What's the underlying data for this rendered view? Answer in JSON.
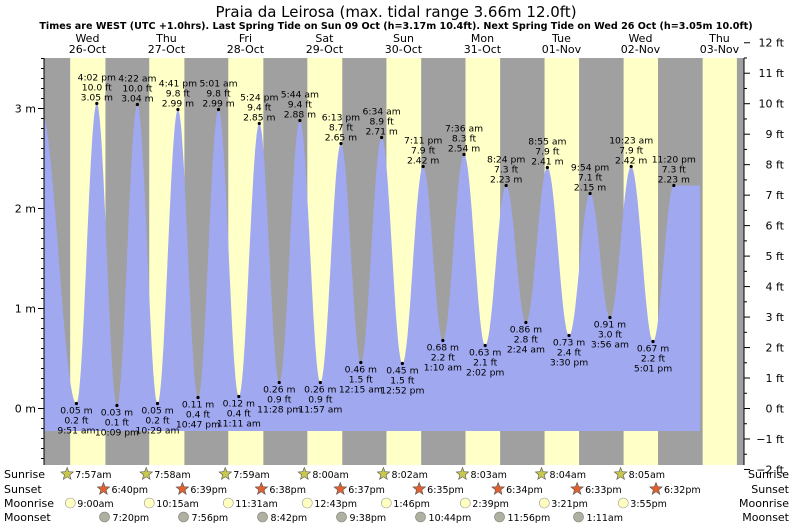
{
  "chart_data": {
    "type": "area",
    "title": "Praia da Leirosa (max. tidal range 3.66m 12.0ft)",
    "subtitle": "Times are WEST (UTC +1.0hrs). Last Spring Tide on Sun 09 Oct (h=3.17m 10.4ft). Next Spring Tide on Wed 26 Oct (h=3.05m 10.0ft)",
    "days": [
      {
        "name": "Wed",
        "date": "26-Oct"
      },
      {
        "name": "Thu",
        "date": "27-Oct"
      },
      {
        "name": "Fri",
        "date": "28-Oct"
      },
      {
        "name": "Sat",
        "date": "29-Oct"
      },
      {
        "name": "Sun",
        "date": "30-Oct"
      },
      {
        "name": "Mon",
        "date": "31-Oct"
      },
      {
        "name": "Tue",
        "date": "01-Nov"
      },
      {
        "name": "Wed",
        "date": "02-Nov"
      },
      {
        "name": "Thu",
        "date": "03-Nov"
      }
    ],
    "y_left": {
      "unit": "m",
      "ticks": [
        "0 m",
        "1 m",
        "2 m",
        "3 m"
      ],
      "values": [
        0,
        1,
        2,
        3
      ]
    },
    "y_right": {
      "unit": "ft",
      "ticks": [
        "−2 ft",
        "−1 ft",
        "0 ft",
        "1 ft",
        "2 ft",
        "3 ft",
        "4 ft",
        "5 ft",
        "6 ft",
        "7 ft",
        "8 ft",
        "9 ft",
        "10 ft",
        "11 ft",
        "12 ft"
      ],
      "values": [
        -2,
        -1,
        0,
        1,
        2,
        3,
        4,
        5,
        6,
        7,
        8,
        9,
        10,
        11,
        12
      ]
    },
    "ylim_m": [
      -0.55,
      3.66
    ],
    "daylight": [
      {
        "sunrise": 7.95,
        "sunset": 18.667
      },
      {
        "sunrise": 7.967,
        "sunset": 18.65
      },
      {
        "sunrise": 7.983,
        "sunset": 18.633
      },
      {
        "sunrise": 8.0,
        "sunset": 18.617
      },
      {
        "sunrise": 8.033,
        "sunset": 18.583
      },
      {
        "sunrise": 8.05,
        "sunset": 18.567
      },
      {
        "sunrise": 8.067,
        "sunset": 18.55
      },
      {
        "sunrise": 8.083,
        "sunset": 18.533
      },
      {
        "sunrise": 8.1,
        "sunset": 18.5
      }
    ],
    "tides": [
      {
        "t": -1.0,
        "h": 3.0,
        "label": false
      },
      {
        "t": 9.85,
        "h": 0.05,
        "m": "0.05 m",
        "ft": "0.2 ft",
        "time": "9:51 am",
        "type": "low"
      },
      {
        "t": 16.033,
        "h": 3.05,
        "m": "3.05 m",
        "ft": "10.0 ft",
        "time": "4:02 pm",
        "type": "high"
      },
      {
        "t": 22.15,
        "h": 0.03,
        "m": "0.03 m",
        "ft": "0.1 ft",
        "time": "10:09 pm",
        "type": "low"
      },
      {
        "t": 28.367,
        "h": 3.04,
        "m": "3.04 m",
        "ft": "10.0 ft",
        "time": "4:22 am",
        "type": "high"
      },
      {
        "t": 34.483,
        "h": 0.05,
        "m": "0.05 m",
        "ft": "0.2 ft",
        "time": "10:29 am",
        "type": "low"
      },
      {
        "t": 40.683,
        "h": 2.99,
        "m": "2.99 m",
        "ft": "9.8 ft",
        "time": "4:41 pm",
        "type": "high"
      },
      {
        "t": 46.783,
        "h": 0.11,
        "m": "0.11 m",
        "ft": "0.4 ft",
        "time": "10:47 pm",
        "type": "low"
      },
      {
        "t": 53.017,
        "h": 2.99,
        "m": "2.99 m",
        "ft": "9.8 ft",
        "time": "5:01 am",
        "type": "high"
      },
      {
        "t": 59.183,
        "h": 0.12,
        "m": "0.12 m",
        "ft": "0.4 ft",
        "time": "11:11 am",
        "type": "low"
      },
      {
        "t": 65.4,
        "h": 2.85,
        "m": "2.85 m",
        "ft": "9.4 ft",
        "time": "5:24 pm",
        "type": "high"
      },
      {
        "t": 71.467,
        "h": 0.26,
        "m": "0.26 m",
        "ft": "0.9 ft",
        "time": "11:28 pm",
        "type": "low"
      },
      {
        "t": 77.733,
        "h": 2.88,
        "m": "2.88 m",
        "ft": "9.4 ft",
        "time": "5:44 am",
        "type": "high"
      },
      {
        "t": 83.95,
        "h": 0.26,
        "m": "0.26 m",
        "ft": "0.9 ft",
        "time": "11:57 am",
        "type": "low"
      },
      {
        "t": 90.217,
        "h": 2.65,
        "m": "2.65 m",
        "ft": "8.7 ft",
        "time": "6:13 pm",
        "type": "high"
      },
      {
        "t": 96.25,
        "h": 0.46,
        "m": "0.46 m",
        "ft": "1.5 ft",
        "time": "12:15 am",
        "type": "low"
      },
      {
        "t": 102.567,
        "h": 2.71,
        "m": "2.71 m",
        "ft": "8.9 ft",
        "time": "6:34 am",
        "type": "high"
      },
      {
        "t": 108.867,
        "h": 0.45,
        "m": "0.45 m",
        "ft": "1.5 ft",
        "time": "12:52 pm",
        "type": "low"
      },
      {
        "t": 115.183,
        "h": 2.42,
        "m": "2.42 m",
        "ft": "7.9 ft",
        "time": "7:11 pm",
        "type": "high"
      },
      {
        "t": 121.167,
        "h": 0.68,
        "m": "0.68 m",
        "ft": "2.2 ft",
        "time": "1:10 am",
        "type": "low"
      },
      {
        "t": 127.6,
        "h": 2.54,
        "m": "2.54 m",
        "ft": "8.3 ft",
        "time": "7:36 am",
        "type": "high"
      },
      {
        "t": 134.033,
        "h": 0.63,
        "m": "0.63 m",
        "ft": "2.1 ft",
        "time": "2:02 pm",
        "type": "low"
      },
      {
        "t": 140.4,
        "h": 2.23,
        "m": "2.23 m",
        "ft": "7.3 ft",
        "time": "8:24 pm",
        "type": "high"
      },
      {
        "t": 146.4,
        "h": 0.86,
        "m": "0.86 m",
        "ft": "2.8 ft",
        "time": "2:24 am",
        "type": "low"
      },
      {
        "t": 152.917,
        "h": 2.41,
        "m": "2.41 m",
        "ft": "7.9 ft",
        "time": "8:55 am",
        "type": "high"
      },
      {
        "t": 159.5,
        "h": 0.73,
        "m": "0.73 m",
        "ft": "2.4 ft",
        "time": "3:30 pm",
        "type": "low"
      },
      {
        "t": 165.9,
        "h": 2.15,
        "m": "2.15 m",
        "ft": "7.1 ft",
        "time": "9:54 pm",
        "type": "high"
      },
      {
        "t": 171.933,
        "h": 0.91,
        "m": "0.91 m",
        "ft": "3.0 ft",
        "time": "3:56 am",
        "type": "low"
      },
      {
        "t": 178.383,
        "h": 2.42,
        "m": "2.42 m",
        "ft": "7.9 ft",
        "time": "10:23 am",
        "type": "high"
      },
      {
        "t": 185.017,
        "h": 0.67,
        "m": "0.67 m",
        "ft": "2.2 ft",
        "time": "5:01 pm",
        "type": "low"
      },
      {
        "t": 191.333,
        "h": 2.23,
        "m": "2.23 m",
        "ft": "7.3 ft",
        "time": "11:20 pm",
        "type": "high"
      }
    ],
    "astro_row_labels": [
      "Sunrise",
      "Sunset",
      "Moonrise",
      "Moonset"
    ],
    "astro": [
      {
        "sunrise": "7:57am",
        "sunset": "6:40pm",
        "moonrise": "9:00am",
        "moonset": "7:20pm"
      },
      {
        "sunrise": "7:58am",
        "sunset": "6:39pm",
        "moonrise": "10:15am",
        "moonset": "7:56pm"
      },
      {
        "sunrise": "7:59am",
        "sunset": "6:38pm",
        "moonrise": "11:31am",
        "moonset": "8:42pm"
      },
      {
        "sunrise": "8:00am",
        "sunset": "6:37pm",
        "moonrise": "12:43pm",
        "moonset": "9:38pm"
      },
      {
        "sunrise": "8:02am",
        "sunset": "6:35pm",
        "moonrise": "1:46pm",
        "moonset": "10:44pm"
      },
      {
        "sunrise": "8:03am",
        "sunset": "6:34pm",
        "moonrise": "2:39pm",
        "moonset": "11:56pm"
      },
      {
        "sunrise": "8:04am",
        "sunset": "6:33pm",
        "moonrise": "3:21pm",
        "moonset": "1:11am"
      },
      {
        "sunrise": "8:05am",
        "sunset": "6:32pm",
        "moonrise": "3:55pm",
        "moonset": ""
      }
    ],
    "colors": {
      "day": "#ffffc8",
      "night": "#a0a0a0",
      "water": "#a0a8f0",
      "day_name": "#cc0000",
      "sun_icon": "#c8c850",
      "sunset_icon": "#e06030",
      "moonrise_icon": "#ffffc0",
      "moonset_icon": "#b0b0a0"
    }
  }
}
